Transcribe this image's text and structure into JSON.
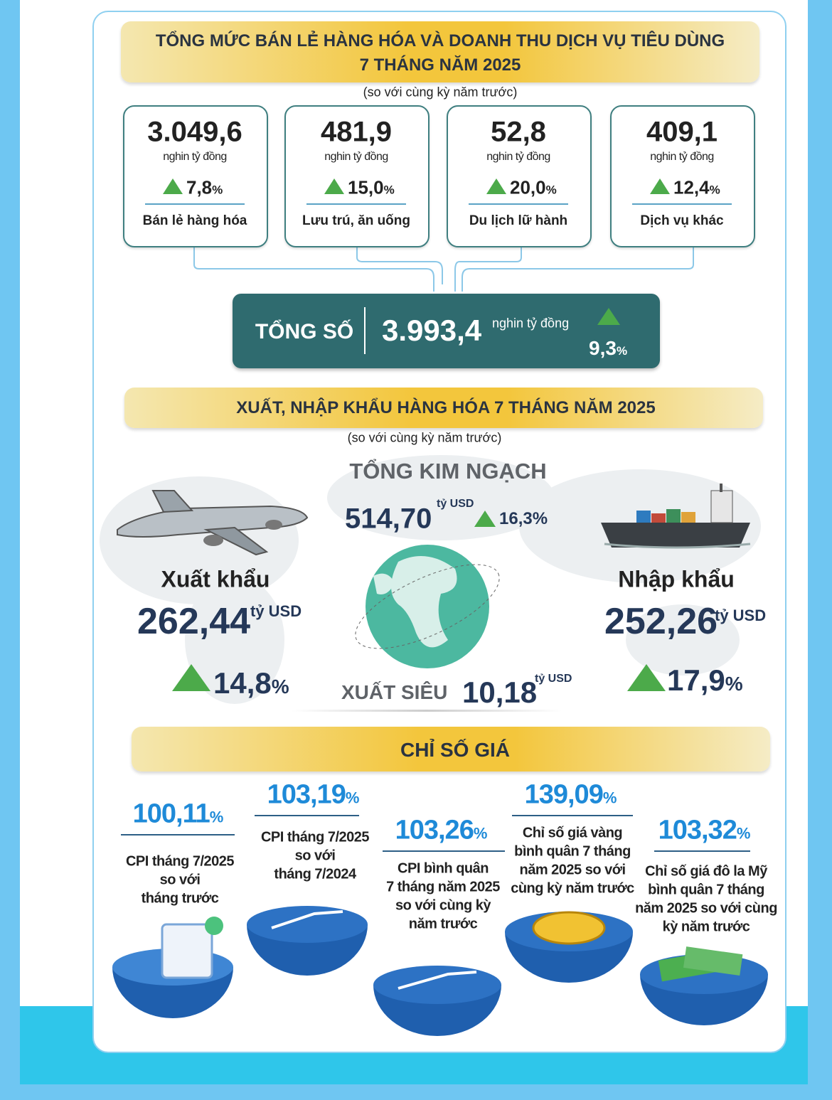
{
  "retail": {
    "title_lines": [
      "TỔNG MỨC BÁN LẺ HÀNG HÓA VÀ DOANH THU DỊCH VỤ TIÊU DÙNG",
      "7 THÁNG NĂM 2025"
    ],
    "note": "(so với cùng kỳ năm trước)",
    "unit": "nghin tỷ đồng",
    "percent": "%",
    "items": [
      {
        "value": "3.049,6",
        "growth": "7,8",
        "label": "Bán lẻ hàng hóa"
      },
      {
        "value": "481,9",
        "growth": "15,0",
        "label": "Lưu trú, ăn uống"
      },
      {
        "value": "52,8",
        "growth": "20,0",
        "label": "Du lịch lữ hành"
      },
      {
        "value": "409,1",
        "growth": "12,4",
        "label": "Dịch vụ khác"
      }
    ],
    "total": {
      "label": "TỔNG SỐ",
      "value": "3.993,4",
      "growth": "9,3"
    }
  },
  "trade": {
    "title": "XUẤT, NHẬP KHẨU HÀNG HÓA 7 THÁNG NĂM 2025",
    "note": "(so với cùng kỳ năm trước)",
    "unit": "tỷ USD",
    "percent": "%",
    "total": {
      "label": "TỔNG KIM NGẠCH",
      "value": "514,70",
      "growth": "16,3"
    },
    "export": {
      "label": "Xuất khẩu",
      "value": "262,44",
      "growth": "14,8"
    },
    "import": {
      "label": "Nhập khẩu",
      "value": "252,26",
      "growth": "17,9"
    },
    "surplus": {
      "label": "XUẤT SIÊU",
      "value": "10,18"
    }
  },
  "prices": {
    "title": "CHỈ SỐ GIÁ",
    "percent": "%",
    "items": [
      {
        "value": "100,11",
        "lines": [
          "CPI tháng 7/2025",
          "so với",
          "tháng trước"
        ]
      },
      {
        "value": "103,19",
        "lines": [
          "CPI tháng 7/2025",
          "so với",
          "tháng 7/2024"
        ]
      },
      {
        "value": "103,26",
        "lines": [
          "CPI bình quân",
          "7 tháng năm 2025",
          "so với cùng kỳ",
          "năm trước"
        ]
      },
      {
        "value": "139,09",
        "lines": [
          "Chỉ số giá vàng",
          "bình quân 7 tháng",
          "năm 2025 so với",
          "cùng kỳ năm trước"
        ]
      },
      {
        "value": "103,32",
        "lines": [
          "Chỉ số giá đô la Mỹ",
          "bình quân 7 tháng",
          "năm 2025 so với cùng",
          "kỳ năm trước"
        ]
      }
    ]
  }
}
